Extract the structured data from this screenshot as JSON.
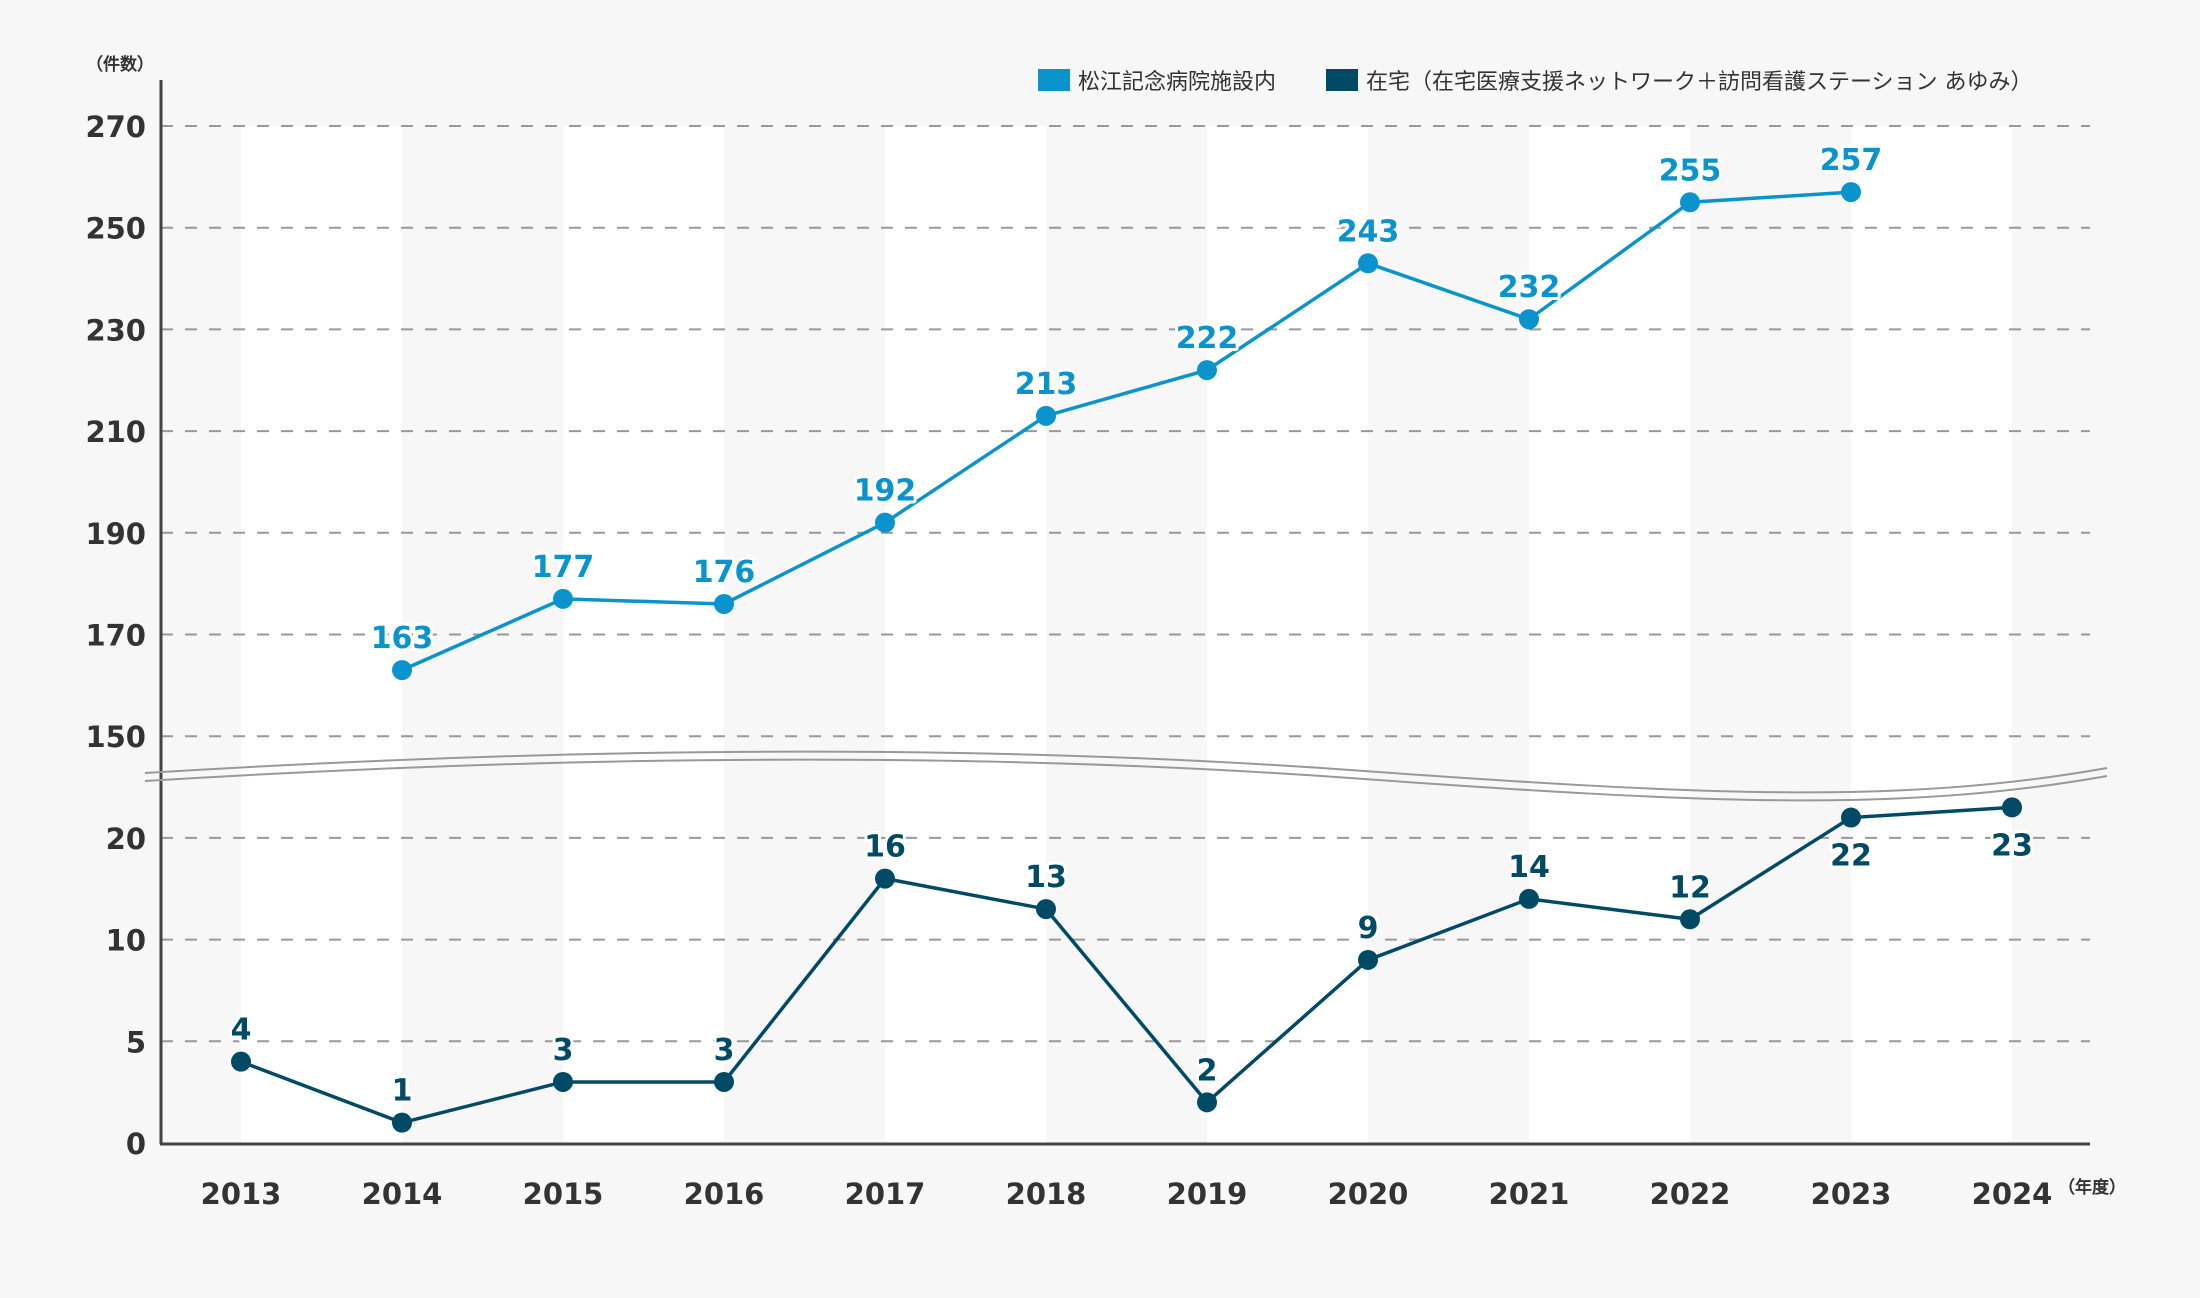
{
  "chart_data": {
    "type": "line",
    "y_unit_label": "（件数）",
    "x_unit_label": "（年度）",
    "categories": [
      "2013",
      "2014",
      "2015",
      "2016",
      "2017",
      "2018",
      "2019",
      "2020",
      "2021",
      "2022",
      "2023",
      "2024"
    ],
    "y_ticks": [
      "270",
      "250",
      "230",
      "210",
      "190",
      "170",
      "150",
      "20",
      "10",
      "5",
      "0"
    ],
    "axis_break": "between 150 and 20",
    "grid": true,
    "legend_position": "top-right",
    "series": [
      {
        "name": "松江記念病院施設内",
        "color": "#0a93cc",
        "values": [
          null,
          163,
          177,
          176,
          192,
          213,
          222,
          243,
          232,
          255,
          257,
          null
        ]
      },
      {
        "name": "在宅（在宅医療支援ネットワーク＋訪問看護ステーション あゆみ）",
        "color": "#004a66",
        "values": [
          4,
          1,
          3,
          3,
          16,
          13,
          2,
          9,
          14,
          12,
          22,
          23
        ]
      }
    ]
  }
}
